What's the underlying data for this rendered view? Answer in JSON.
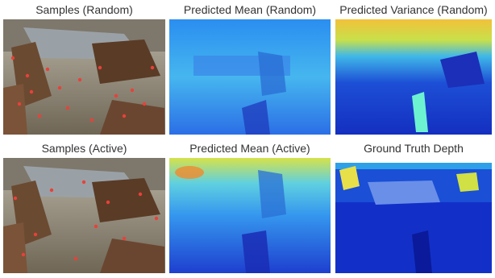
{
  "panels": [
    {
      "title": "Samples (Random)",
      "kind": "photo"
    },
    {
      "title": "Predicted Mean (Random)",
      "kind": "mean"
    },
    {
      "title": "Predicted Variance (Random)",
      "kind": "variance"
    },
    {
      "title": "Samples (Active)",
      "kind": "photo"
    },
    {
      "title": "Predicted Mean (Active)",
      "kind": "mean"
    },
    {
      "title": "Ground Truth Depth",
      "kind": "gt"
    }
  ],
  "colors": {
    "sample_dot": "#e8413a",
    "depth_near": "#1024c8",
    "depth_far": "#f5e23a",
    "floor_photo": "#8a7f6a"
  }
}
